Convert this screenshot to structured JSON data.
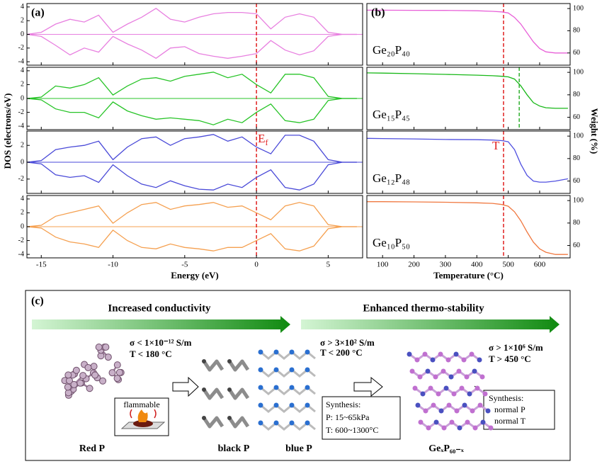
{
  "chart_data": [
    {
      "type": "line",
      "panel": "(a)",
      "xlim": [
        -16,
        7.4
      ],
      "xticks": [
        -15,
        -10,
        -5,
        0,
        5
      ],
      "ylim": [
        -4.5,
        4.5
      ],
      "yticks": [
        -4,
        -2,
        0,
        2,
        4
      ],
      "x": [
        -16,
        -15,
        -14,
        -13,
        -12,
        -11,
        -10,
        -9,
        -8,
        -7,
        -6,
        -5,
        -4,
        -3,
        -2,
        -1,
        0,
        1,
        2,
        3,
        4,
        5,
        6,
        7
      ],
      "series": [
        {
          "color": "#e880e0",
          "values": [
            0,
            0.3,
            1.5,
            2.2,
            1.8,
            2.8,
            0.3,
            1.5,
            2.5,
            3.8,
            2.2,
            1.8,
            2.5,
            3,
            3.2,
            3.2,
            3.0,
            0.8,
            2.5,
            3,
            2.5,
            0.3,
            0,
            0
          ]
        },
        {
          "color": "#e880e0",
          "values": [
            0,
            -0.3,
            -1.6,
            -3,
            -2,
            -2.6,
            -0.3,
            -1.4,
            -2.3,
            -3.5,
            -2,
            -1.8,
            -2.8,
            -3.2,
            -3.5,
            -3.2,
            -2.8,
            -0.9,
            -2.3,
            -3,
            -2.4,
            -0.3,
            0,
            0
          ]
        }
      ],
      "vlines": [
        {
          "value": 0,
          "color": "#e02020"
        }
      ]
    },
    {
      "type": "line",
      "xlim": [
        -16,
        7.4
      ],
      "xticks": [
        -15,
        -10,
        -5,
        0,
        5
      ],
      "ylim": [
        -4.5,
        4.5
      ],
      "yticks": [
        -4,
        -2,
        0,
        2,
        4
      ],
      "x": [
        -16,
        -15,
        -14,
        -13,
        -12,
        -11,
        -10,
        -9,
        -8,
        -7,
        -6,
        -5,
        -4,
        -3,
        -2,
        -1,
        0,
        1,
        2,
        3,
        4,
        5,
        6,
        7
      ],
      "series": [
        {
          "color": "#28c428",
          "values": [
            0,
            0.2,
            1.8,
            1.5,
            2,
            3,
            0.5,
            1.8,
            2.8,
            3,
            2.5,
            3.2,
            3.5,
            3.8,
            3,
            3.5,
            2,
            0.8,
            3.5,
            3.5,
            3,
            0.3,
            0,
            0
          ]
        },
        {
          "color": "#28c428",
          "values": [
            0,
            -0.2,
            -1.5,
            -2,
            -2,
            -2.8,
            -0.5,
            -1.8,
            -2.5,
            -3,
            -2.8,
            -3,
            -3.2,
            -3.8,
            -3,
            -3.5,
            -2,
            -0.8,
            -3.2,
            -3.5,
            -3,
            -0.3,
            0,
            0
          ]
        }
      ],
      "vlines": [
        {
          "value": 0,
          "color": "#e02020"
        }
      ]
    },
    {
      "type": "line",
      "xlim": [
        -16,
        7.4
      ],
      "xticks": [
        -15,
        -10,
        -5,
        0,
        5
      ],
      "ylim": [
        -3.7,
        3.7
      ],
      "yticks": [
        -2,
        0,
        2
      ],
      "ylabel": "DOS (electrons/eV)",
      "annotation": {
        "text": "E",
        "sub": "f"
      },
      "x": [
        -16,
        -15,
        -14,
        -13,
        -12,
        -11,
        -10,
        -9,
        -8,
        -7,
        -6,
        -5,
        -4,
        -3,
        -2,
        -1,
        0,
        1,
        2,
        3,
        4,
        5,
        6,
        7
      ],
      "series": [
        {
          "color": "#4a4ad8",
          "values": [
            0,
            0.2,
            1.5,
            1.8,
            2,
            2.5,
            0.3,
            1.8,
            2.8,
            3,
            2,
            2.8,
            3,
            3.3,
            2.5,
            3,
            1.8,
            1,
            3.2,
            3.2,
            2.5,
            0.3,
            0,
            0
          ]
        },
        {
          "color": "#4a4ad8",
          "values": [
            0,
            -0.2,
            -1.5,
            -1.8,
            -1.6,
            -2.4,
            -0.3,
            -1.6,
            -2.6,
            -3,
            -2.2,
            -2.8,
            -3.2,
            -3.3,
            -2.6,
            -3,
            -1.8,
            -0.9,
            -3,
            -3.3,
            -2.6,
            -0.3,
            0,
            0
          ]
        }
      ],
      "vlines": [
        {
          "value": 0,
          "color": "#e02020"
        }
      ]
    },
    {
      "type": "line",
      "xlim": [
        -16,
        7.4
      ],
      "xticks": [
        -15,
        -10,
        -5,
        0,
        5
      ],
      "ylim": [
        -4.5,
        4.5
      ],
      "yticks": [
        -4,
        -2,
        0,
        2,
        4
      ],
      "xlabel": "Energy (eV)",
      "x": [
        -16,
        -15,
        -14,
        -13,
        -12,
        -11,
        -10,
        -9,
        -8,
        -7,
        -6,
        -5,
        -4,
        -3,
        -2,
        -1,
        0,
        1,
        2,
        3,
        4,
        5,
        6,
        7
      ],
      "series": [
        {
          "color": "#f5a050",
          "values": [
            0,
            0.2,
            1.5,
            2,
            2.5,
            3,
            0.5,
            2,
            3.2,
            3.5,
            2.5,
            3,
            3.2,
            3.5,
            2.8,
            3,
            2,
            1,
            3,
            3.5,
            3,
            0.3,
            0,
            0
          ]
        },
        {
          "color": "#f5a050",
          "values": [
            0,
            -0.2,
            -1.5,
            -2.2,
            -2.5,
            -3,
            -0.5,
            -2,
            -3,
            -3.2,
            -2.5,
            -3,
            -3.2,
            -3.5,
            -3,
            -3,
            -2,
            -1,
            -3.2,
            -3.5,
            -2.8,
            -0.3,
            0,
            0
          ]
        }
      ],
      "vlines": [
        {
          "value": 0,
          "color": "#e02020"
        }
      ]
    },
    {
      "type": "line",
      "panel": "(b)",
      "label": "Ge₂₀P₄₀",
      "yaxis_side": "right",
      "xlim": [
        50,
        697
      ],
      "xticks": [
        100,
        200,
        300,
        400,
        500,
        600
      ],
      "ylim": [
        49,
        104.5
      ],
      "yticks": [
        60,
        80,
        100
      ],
      "x": [
        50,
        100,
        200,
        300,
        400,
        450,
        480,
        500,
        520,
        540,
        560,
        580,
        600,
        620,
        650,
        690
      ],
      "series": [
        {
          "color": "#e860d8",
          "values": [
            98.5,
            98.5,
            98.4,
            98.3,
            98,
            97.5,
            97,
            96,
            92,
            86,
            78,
            70,
            64,
            61,
            60,
            60
          ]
        }
      ],
      "vlines": [
        {
          "value": 485,
          "color": "#e02020"
        }
      ]
    },
    {
      "type": "line",
      "label": "Ge₁₅P₄₅",
      "yaxis_side": "right",
      "xlim": [
        50,
        697
      ],
      "xticks": [
        100,
        200,
        300,
        400,
        500,
        600
      ],
      "ylim": [
        49,
        104.5
      ],
      "yticks": [
        60,
        80,
        100
      ],
      "x": [
        50,
        100,
        200,
        300,
        400,
        450,
        480,
        500,
        520,
        540,
        560,
        580,
        600,
        620,
        650,
        690
      ],
      "series": [
        {
          "color": "#18b818",
          "values": [
            99.5,
            99.3,
            98.8,
            98.2,
            97.5,
            97,
            96.5,
            96,
            94,
            88,
            80,
            73,
            70,
            68.5,
            68,
            68
          ]
        }
      ],
      "vlines": [
        {
          "value": 485,
          "color": "#e02020"
        },
        {
          "value": 535,
          "color": "#30b030"
        }
      ]
    },
    {
      "type": "line",
      "label": "Ge₁₂P₄₈",
      "yaxis_side": "right",
      "ylabel": "Weight (%)",
      "annotation": {
        "text": "T"
      },
      "xlim": [
        50,
        697
      ],
      "xticks": [
        100,
        200,
        300,
        400,
        500,
        600
      ],
      "ylim": [
        49,
        104.5
      ],
      "yticks": [
        60,
        80,
        100
      ],
      "x": [
        50,
        100,
        200,
        300,
        400,
        450,
        480,
        500,
        520,
        540,
        560,
        580,
        600,
        620,
        650,
        690
      ],
      "series": [
        {
          "color": "#5050e0",
          "values": [
            98,
            97.8,
            97.5,
            97,
            96.8,
            96.5,
            96,
            95,
            88,
            75,
            65,
            60,
            59,
            59,
            60,
            62
          ]
        }
      ],
      "vlines": [
        {
          "value": 485,
          "color": "#e02020"
        }
      ]
    },
    {
      "type": "line",
      "label": "Ge₁₀P₅₀",
      "yaxis_side": "right",
      "xlabel": "Temperature (°C)",
      "xlim": [
        50,
        697
      ],
      "xticks": [
        100,
        200,
        300,
        400,
        500,
        600
      ],
      "ylim": [
        49,
        104.5
      ],
      "yticks": [
        60,
        80,
        100
      ],
      "x": [
        50,
        100,
        200,
        300,
        400,
        450,
        480,
        500,
        520,
        540,
        560,
        580,
        600,
        620,
        650,
        690
      ],
      "series": [
        {
          "color": "#f07840",
          "values": [
            99,
            99,
            98.8,
            98.5,
            98,
            97.5,
            96.5,
            95,
            90,
            82,
            72,
            63,
            57,
            54,
            52,
            52
          ]
        }
      ],
      "vlines": [
        {
          "value": 485,
          "color": "#e02020"
        }
      ]
    }
  ],
  "diagram": {
    "panel": "(c)",
    "headers": [
      "Increased conductivity",
      "Enhanced thermo-stability"
    ],
    "conditions": [
      {
        "sigma": "σ < 1×10⁻¹² S/m",
        "T": "T < 180 °C"
      },
      {
        "sigma": "σ > 3×10² S/m",
        "T": "T < 200 °C"
      },
      {
        "sigma": "σ > 1×10⁶ S/m",
        "T": "T > 450 °C"
      }
    ],
    "flammable": "flammable",
    "synthesis_1": [
      "Synthesis:",
      "P: 15~65kPa",
      "T: 600~1300°C"
    ],
    "synthesis_2": [
      "Synthesis:",
      "normal P",
      "normal T"
    ],
    "materials": [
      "Red P",
      "black P",
      "blue P",
      "GeₓP₆₀₋ₓ"
    ]
  }
}
